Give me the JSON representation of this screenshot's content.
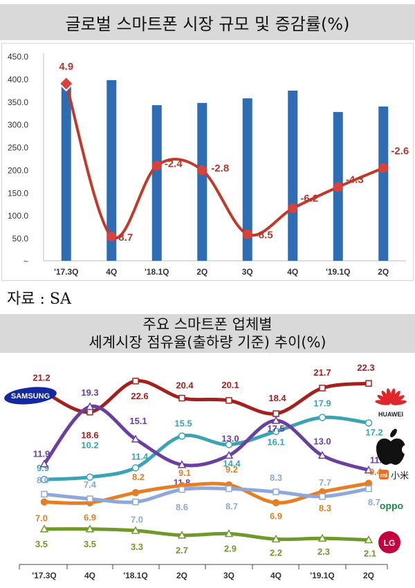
{
  "chart_data": [
    {
      "type": "bar",
      "title": "글로벌 스마트폰 시장 규모 및 증감률(%)",
      "categories": [
        "'17.3Q",
        "4Q",
        "'18.1Q",
        "2Q",
        "3Q",
        "4Q",
        "'19.1Q",
        "2Q"
      ],
      "y_ticks": [
        "450.0",
        "400.0",
        "350.0",
        "300.0",
        "250.0",
        "200.0",
        "150.0",
        "100.0",
        "50.0",
        "~"
      ],
      "ylim": [
        0,
        450
      ],
      "series": [
        {
          "type": "bar",
          "values": [
            390,
            397,
            342,
            347,
            357,
            374,
            327,
            339
          ],
          "color": "#2e6db4"
        },
        {
          "type": "line",
          "values": [
            4.9,
            -8.7,
            -2.4,
            -2.8,
            -8.5,
            -6.2,
            -4.3,
            -2.6
          ],
          "color": "#c0392b"
        }
      ],
      "data_labels": [
        "4.9",
        "-8.7",
        "-2.4",
        "-2.8",
        "-8.5",
        "-6.2",
        "-4.3",
        "-2.6"
      ],
      "grid": false
    },
    {
      "type": "line",
      "title": "주요 스마트폰 업체별 세계시장 점유율(출하량 기준) 추이(%)",
      "categories": [
        "'17.3Q",
        "4Q",
        "'18.1Q",
        "2Q",
        "3Q",
        "4Q",
        "'19.1Q",
        "2Q"
      ],
      "ylim": [
        0,
        25
      ],
      "series": [
        {
          "name": "SAMSUNG",
          "color": "#a5201c",
          "values": [
            21.2,
            18.6,
            22.6,
            20.4,
            20.1,
            18.4,
            21.7,
            22.3
          ],
          "labels": [
            "21.2",
            "18.6",
            "22.6",
            "20.4",
            "20.1",
            "18.4",
            "21.7",
            "22.3"
          ]
        },
        {
          "name": "HUAWEI",
          "color": "#3aa3b4",
          "values": [
            9.9,
            10.2,
            11.4,
            15.5,
            14.4,
            16.1,
            17.9,
            17.2
          ],
          "labels": [
            "9.9",
            "10.2",
            "11.4",
            "15.5",
            "14.4",
            "16.1",
            "17.9",
            "17.2"
          ]
        },
        {
          "name": "Apple",
          "color": "#6b3fa0",
          "values": [
            11.9,
            19.3,
            15.1,
            11.8,
            13.0,
            17.5,
            13.0,
            11.1
          ],
          "labels": [
            "11.9",
            "19.3",
            "15.1",
            "11.8",
            "13.0",
            "17.5",
            "13.0",
            "11.1"
          ]
        },
        {
          "name": "Xiaomi",
          "color": "#e67e22",
          "values": [
            7.0,
            6.9,
            8.2,
            9.1,
            9.2,
            6.9,
            8.3,
            9.4
          ],
          "labels": [
            "7.0",
            "6.9",
            "8.2",
            "9.1",
            "9.2",
            "6.9",
            "8.3",
            "9.4"
          ]
        },
        {
          "name": "OPPO",
          "color": "#8ea8dc",
          "values": [
            8.0,
            7.4,
            7.0,
            8.6,
            8.7,
            8.3,
            7.7,
            8.7
          ],
          "labels": [
            "8.0",
            "7.4",
            "7.0",
            "8.6",
            "8.7",
            "8.3",
            "7.7",
            "8.7"
          ]
        },
        {
          "name": "LG",
          "color": "#6f9a2a",
          "values": [
            3.5,
            3.5,
            3.3,
            2.7,
            2.9,
            2.2,
            2.3,
            2.1
          ],
          "labels": [
            "3.5",
            "3.5",
            "3.3",
            "2.7",
            "2.9",
            "2.2",
            "2.3",
            "2.1"
          ]
        }
      ],
      "grid": false
    }
  ],
  "banner1": {
    "title": "글로벌 스마트폰 시장 규모 및 증감률(%)"
  },
  "banner2": {
    "line1": "주요 스마트폰 업체별",
    "line2": "세계시장 점유율(출하량 기준) 추이(%)"
  },
  "source": "자료 : SA",
  "logos": {
    "samsung": "SAMSUNG",
    "huawei": "HUAWEI",
    "xiaomi_mi": "mi",
    "xiaomi_cn": "小米",
    "oppo": "oppo",
    "lg": "LG"
  }
}
